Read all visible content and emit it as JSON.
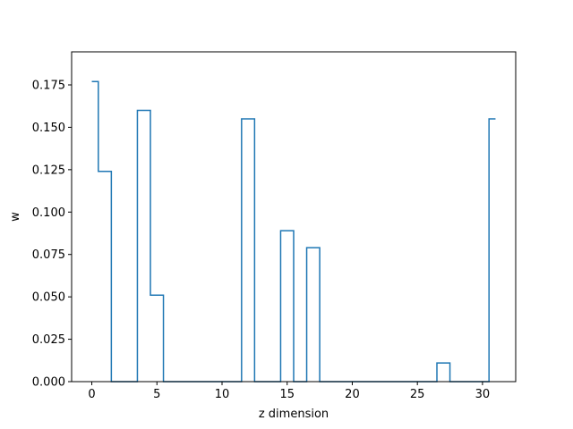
{
  "chart_data": {
    "type": "line",
    "drawstyle": "steps-mid",
    "title": "",
    "xlabel": "z dimension",
    "ylabel": "w",
    "xlim": [
      -1.55,
      32.55
    ],
    "ylim": [
      0,
      0.1945
    ],
    "xticks": [
      0,
      5,
      10,
      15,
      20,
      25,
      30
    ],
    "yticks": [
      0.0,
      0.025,
      0.05,
      0.075,
      0.1,
      0.125,
      0.15,
      0.175
    ],
    "ytick_labels": [
      "0.000",
      "0.025",
      "0.050",
      "0.075",
      "0.100",
      "0.125",
      "0.150",
      "0.175"
    ],
    "grid": false,
    "line_color": "#1f77b4",
    "x": [
      0,
      1,
      2,
      3,
      4,
      5,
      6,
      7,
      8,
      9,
      10,
      11,
      12,
      13,
      14,
      15,
      16,
      17,
      18,
      19,
      20,
      21,
      22,
      23,
      24,
      25,
      26,
      27,
      28,
      29,
      30,
      31
    ],
    "values": [
      0.177,
      0.124,
      0,
      0,
      0.16,
      0.051,
      0,
      0,
      0,
      0,
      0,
      0,
      0.155,
      0,
      0,
      0.089,
      0,
      0.079,
      0,
      0,
      0,
      0,
      0,
      0,
      0,
      0,
      0,
      0.011,
      0,
      0,
      0,
      0.155
    ]
  }
}
